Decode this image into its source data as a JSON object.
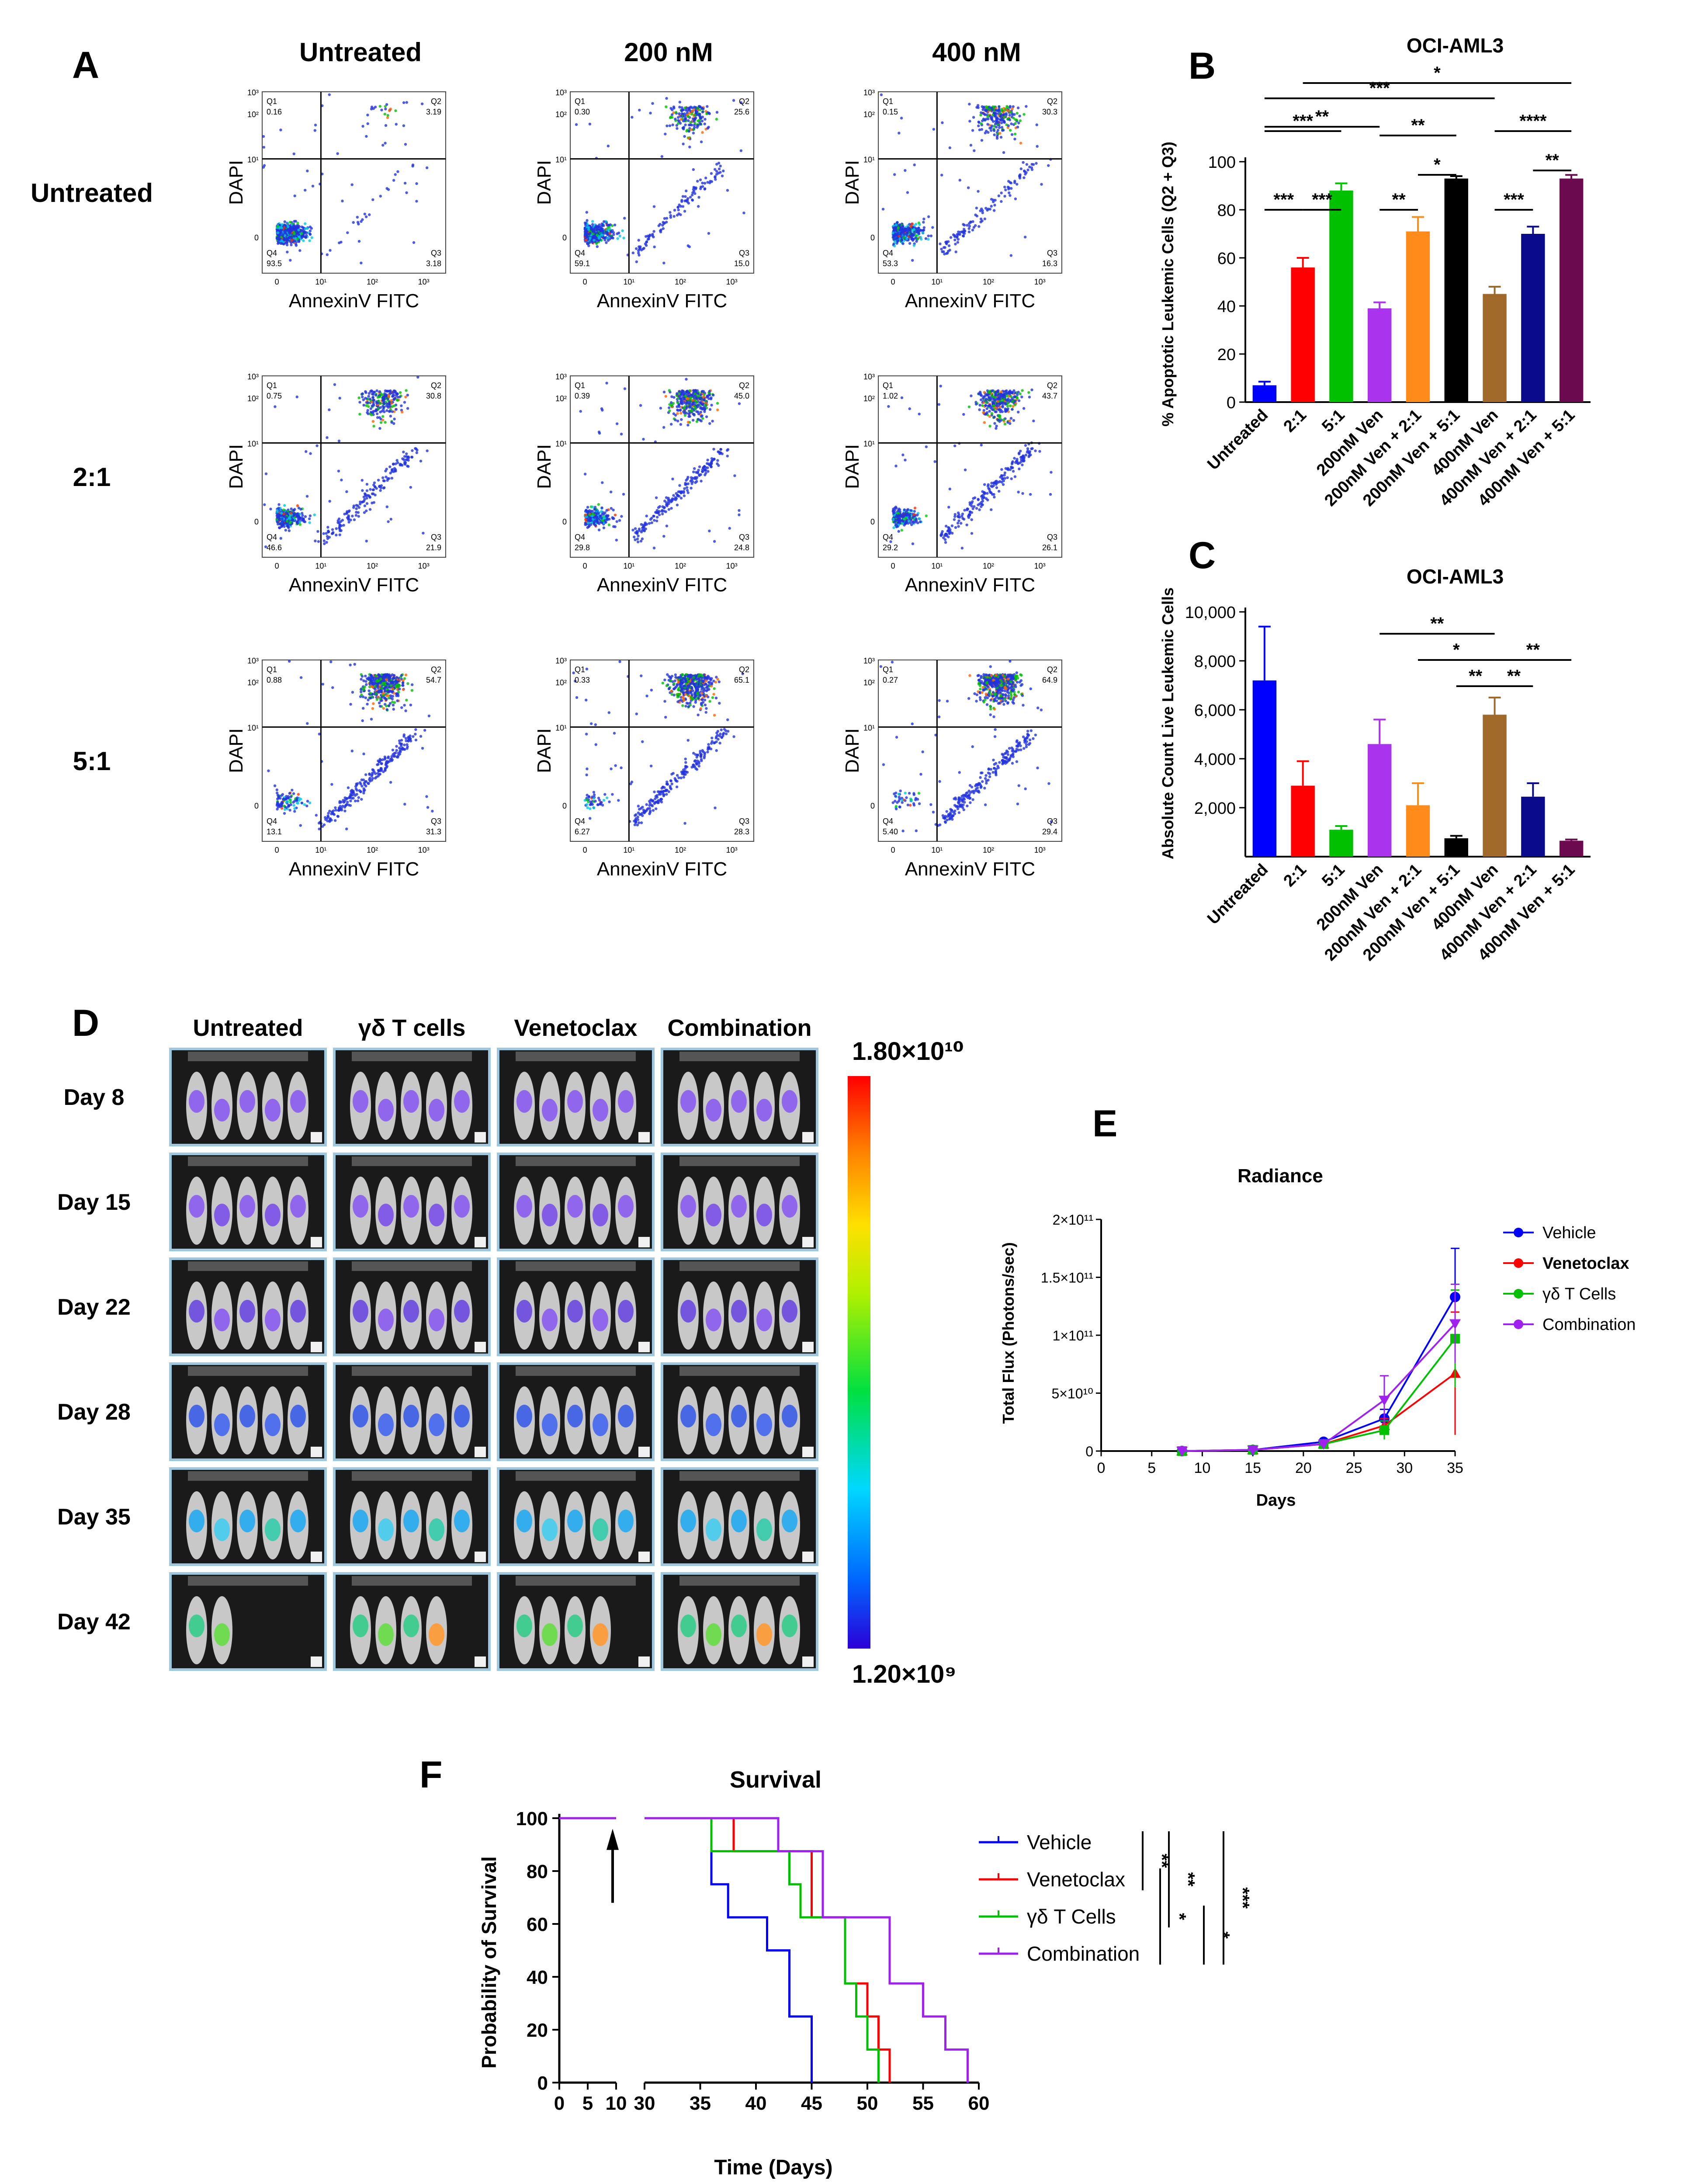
{
  "panel_letters": {
    "A": "A",
    "B": "B",
    "C": "C",
    "D": "D",
    "E": "E",
    "F": "F"
  },
  "colors": {
    "untreated": "#0000ff",
    "r2_1": "#ff0000",
    "r5_1": "#00c000",
    "ven200": "#aa33ee",
    "ven200_2": "#ff8c1a",
    "ven200_5": "#000000",
    "ven400": "#a0692a",
    "ven400_2": "#0a0a8c",
    "ven400_5": "#6b0a4f",
    "vehicle": "#0000ff",
    "venetoclax": "#ff0000",
    "gdt": "#00c000",
    "combination": "#a020f0"
  },
  "chart_data": [
    {
      "id": "A",
      "type": "scatter",
      "col_headers": [
        "Untreated",
        "200 nM",
        "400 nM"
      ],
      "row_headers": [
        "Untreated",
        "2:1",
        "5:1"
      ],
      "xlabel": "AnnexinV FITC",
      "ylabel": "DAPI",
      "x_ticks": [
        "0",
        "10¹",
        "10²",
        "10³"
      ],
      "y_ticks": [
        "0",
        "10¹",
        "10²",
        "10³"
      ],
      "quadrant_labels": [
        "Q1",
        "Q2",
        "Q3",
        "Q4"
      ],
      "plots": [
        {
          "q1": "0.16",
          "q2": "3.19",
          "q3": "3.18",
          "q4": "93.5"
        },
        {
          "q1": "0.30",
          "q2": "25.6",
          "q3": "15.0",
          "q4": "59.1"
        },
        {
          "q1": "0.15",
          "q2": "30.3",
          "q3": "16.3",
          "q4": "53.3"
        },
        {
          "q1": "0.75",
          "q2": "30.8",
          "q3": "21.9",
          "q4": "46.6"
        },
        {
          "q1": "0.39",
          "q2": "45.0",
          "q3": "24.8",
          "q4": "29.8"
        },
        {
          "q1": "1.02",
          "q2": "43.7",
          "q3": "26.1",
          "q4": "29.2"
        },
        {
          "q1": "0.88",
          "q2": "54.7",
          "q3": "31.3",
          "q4": "13.1"
        },
        {
          "q1": "0.33",
          "q2": "65.1",
          "q3": "28.3",
          "q4": "6.27"
        },
        {
          "q1": "0.27",
          "q2": "64.9",
          "q3": "29.4",
          "q4": "5.40"
        }
      ]
    },
    {
      "id": "B",
      "type": "bar",
      "title": "OCI-AML3",
      "ylabel": "% Apoptotic Leukemic Cells (Q2 + Q3)",
      "ylim": [
        0,
        100
      ],
      "yticks": [
        0,
        20,
        40,
        60,
        80,
        100
      ],
      "categories": [
        "Untreated",
        "2:1",
        "5:1",
        "200nM Ven",
        "200nM Ven + 2:1",
        "200nM Ven + 5:1",
        "400nM Ven",
        "400nM Ven + 2:1",
        "400nM Ven + 5:1"
      ],
      "values": [
        7,
        56,
        88,
        39,
        71,
        93,
        45,
        70,
        93
      ],
      "errors": [
        1.5,
        4,
        3,
        2.5,
        6,
        1,
        3,
        3,
        1.5
      ],
      "significance": [
        {
          "a": 0,
          "b": 1,
          "label": "***"
        },
        {
          "a": 1,
          "b": 2,
          "label": "***"
        },
        {
          "a": 0,
          "b": 2,
          "label": "***"
        },
        {
          "a": 0,
          "b": 3,
          "label": "**"
        },
        {
          "a": 0,
          "b": 6,
          "label": "***"
        },
        {
          "a": 1,
          "b": 8,
          "label": "*"
        },
        {
          "a": 3,
          "b": 4,
          "label": "**"
        },
        {
          "a": 4,
          "b": 5,
          "label": "*"
        },
        {
          "a": 3,
          "b": 5,
          "label": "**"
        },
        {
          "a": 6,
          "b": 7,
          "label": "***"
        },
        {
          "a": 7,
          "b": 8,
          "label": "**"
        },
        {
          "a": 6,
          "b": 8,
          "label": "****"
        }
      ]
    },
    {
      "id": "C",
      "type": "bar",
      "title": "OCI-AML3",
      "ylabel": "Absolute Count Live Leukemic Cells",
      "ylim": [
        0,
        10000
      ],
      "yticks": [
        2000,
        4000,
        6000,
        8000,
        10000
      ],
      "ytick_labels": [
        "2,000",
        "4,000",
        "6,000",
        "8,000",
        "10,000"
      ],
      "categories": [
        "Untreated",
        "2:1",
        "5:1",
        "200nM Ven",
        "200nM Ven + 2:1",
        "200nM Ven + 5:1",
        "400nM Ven",
        "400nM Ven + 2:1",
        "400nM Ven + 5:1"
      ],
      "values": [
        7200,
        2900,
        1100,
        4600,
        2100,
        750,
        5800,
        2450,
        650
      ],
      "errors": [
        2200,
        1000,
        150,
        1000,
        900,
        100,
        700,
        550,
        50
      ],
      "significance": [
        {
          "a": 3,
          "b": 6,
          "label": "**"
        },
        {
          "a": 4,
          "b": 6,
          "label": "*"
        },
        {
          "a": 6,
          "b": 8,
          "label": "**"
        },
        {
          "a": 5,
          "b": 6,
          "label": "**"
        },
        {
          "a": 6,
          "b": 7,
          "label": "**"
        }
      ]
    },
    {
      "id": "D",
      "type": "heatmap",
      "columns": [
        "Untreated",
        "γδ T cells",
        "Venetoclax",
        "Combination"
      ],
      "rows": [
        "Day 8",
        "Day 15",
        "Day 22",
        "Day 28",
        "Day 35",
        "Day 42"
      ],
      "colorbar_max": "1.80×10¹⁰",
      "colorbar_min": "1.20×10⁹"
    },
    {
      "id": "E",
      "type": "line",
      "title": "Radiance",
      "xlabel": "Days",
      "ylabel": "Total Flux (Photons/sec)",
      "xlim": [
        0,
        35
      ],
      "xticks": [
        0,
        5,
        10,
        15,
        20,
        25,
        30,
        35
      ],
      "ylim": [
        0,
        200000000000.0
      ],
      "yticks": [
        0,
        50000000000.0,
        100000000000.0,
        150000000000.0,
        200000000000.0
      ],
      "ytick_labels": [
        "0",
        "5×10¹⁰",
        "1×10¹¹",
        "1.5×10¹¹",
        "2×10¹¹"
      ],
      "x": [
        8,
        15,
        22,
        28,
        35
      ],
      "series": [
        {
          "name": "Vehicle",
          "values": [
            0,
            1000000000.0,
            8000000000.0,
            28000000000.0,
            133000000000.0
          ],
          "errors": [
            1000000000.0,
            1000000000.0,
            2000000000.0,
            8000000000.0,
            42000000000.0
          ],
          "marker": "circle"
        },
        {
          "name": "Venetoclax",
          "values": [
            0,
            1000000000.0,
            6000000000.0,
            22000000000.0,
            67000000000.0
          ],
          "errors": [
            1000000000.0,
            1000000000.0,
            2000000000.0,
            6000000000.0,
            53000000000.0
          ],
          "marker": "triangle-up"
        },
        {
          "name": "γδ T Cells",
          "values": [
            0,
            1000000000.0,
            6000000000.0,
            18000000000.0,
            97000000000.0
          ],
          "errors": [
            1000000000.0,
            1000000000.0,
            2000000000.0,
            8000000000.0,
            42000000000.0
          ],
          "marker": "square"
        },
        {
          "name": "Combination",
          "values": [
            0,
            1000000000.0,
            6000000000.0,
            44000000000.0,
            110000000000.0
          ],
          "errors": [
            1000000000.0,
            1000000000.0,
            2000000000.0,
            21000000000.0,
            34000000000.0
          ],
          "marker": "triangle-down"
        }
      ]
    },
    {
      "id": "F",
      "type": "line",
      "title": "Survival",
      "xlabel": "Time (Days)",
      "ylabel": "Probability of Survival",
      "xticks_left": [
        0,
        5,
        10
      ],
      "xticks_right": [
        30,
        35,
        40,
        45,
        50,
        55,
        60
      ],
      "ylim": [
        0,
        100
      ],
      "yticks": [
        0,
        20,
        40,
        60,
        80,
        100
      ],
      "arrow_day": 10,
      "series": [
        {
          "name": "Vehicle",
          "steps": [
            [
              0,
              100
            ],
            [
              36,
              100
            ],
            [
              36,
              75
            ],
            [
              37.5,
              75
            ],
            [
              37.5,
              62.5
            ],
            [
              41,
              62.5
            ],
            [
              41,
              50
            ],
            [
              43,
              50
            ],
            [
              43,
              25
            ],
            [
              45,
              25
            ],
            [
              45,
              0
            ]
          ]
        },
        {
          "name": "Venetoclax",
          "steps": [
            [
              0,
              100
            ],
            [
              38,
              100
            ],
            [
              38,
              87.5
            ],
            [
              45,
              87.5
            ],
            [
              45,
              62.5
            ],
            [
              48,
              62.5
            ],
            [
              48,
              37.5
            ],
            [
              50,
              37.5
            ],
            [
              50,
              25
            ],
            [
              51,
              25
            ],
            [
              51,
              12.5
            ],
            [
              52,
              12.5
            ],
            [
              52,
              0
            ]
          ]
        },
        {
          "name": "γδ T Cells",
          "steps": [
            [
              0,
              100
            ],
            [
              36,
              100
            ],
            [
              36,
              87.5
            ],
            [
              43,
              87.5
            ],
            [
              43,
              75
            ],
            [
              44,
              75
            ],
            [
              44,
              62.5
            ],
            [
              48,
              62.5
            ],
            [
              48,
              37.5
            ],
            [
              49,
              37.5
            ],
            [
              49,
              25
            ],
            [
              50,
              25
            ],
            [
              50,
              12.5
            ],
            [
              51,
              12.5
            ],
            [
              51,
              0
            ]
          ]
        },
        {
          "name": "Combination",
          "steps": [
            [
              0,
              100
            ],
            [
              42,
              100
            ],
            [
              42,
              87.5
            ],
            [
              46,
              87.5
            ],
            [
              46,
              62.5
            ],
            [
              52,
              62.5
            ],
            [
              52,
              37.5
            ],
            [
              55,
              37.5
            ],
            [
              55,
              25
            ],
            [
              57,
              25
            ],
            [
              57,
              12.5
            ],
            [
              59,
              12.5
            ],
            [
              59,
              0
            ]
          ]
        }
      ],
      "significance": [
        {
          "from": 0,
          "to": 1,
          "label": "**"
        },
        {
          "from": 0,
          "to": 2,
          "label": "**"
        },
        {
          "from": 0,
          "to": 3,
          "label": "***"
        },
        {
          "from": 1,
          "to": 3,
          "label": "*"
        },
        {
          "from": 2,
          "to": 3,
          "label": "*"
        }
      ]
    }
  ]
}
